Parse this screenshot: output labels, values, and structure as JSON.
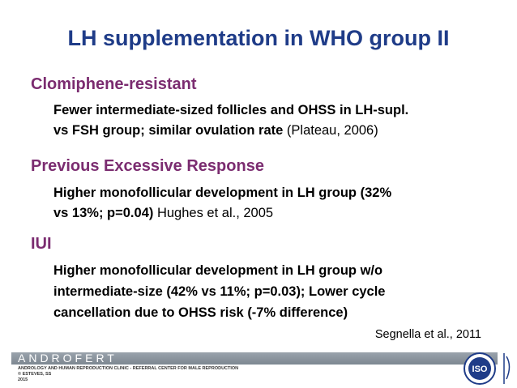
{
  "header": {
    "title": "LH supplementation in WHO group II"
  },
  "sections": [
    {
      "heading": "Clomiphene-resistant",
      "lines": [
        "Fewer intermediate-sized follicles and OHSS in LH-supl.",
        "vs FSH group; similar ovulation rate"
      ],
      "citation": "(Plateau, 2006)"
    },
    {
      "heading": "Previous Excessive Response",
      "lines": [
        "Higher monofollicular development in LH group (32%",
        "vs 13%; p=0.04)"
      ],
      "citation": "Hughes et al., 2005"
    },
    {
      "heading": "IUI",
      "lines": [
        "Higher monofollicular development in LH group w/o",
        "intermediate-size (42% vs 11%; p=0.03); Lower cycle",
        "cancellation due to OHSS risk (-7% difference)"
      ],
      "citation": "Segnella et al., 2011"
    }
  ],
  "footer": {
    "brand": "ANDROFERT",
    "lines": [
      "ANDROLOGY AND HUMAN REPRODUCTION CLINIC - REFERRAL CENTER FOR MALE REPRODUCTION",
      "© ESTEVES, SS",
      "2015"
    ],
    "logo": "ISO"
  }
}
